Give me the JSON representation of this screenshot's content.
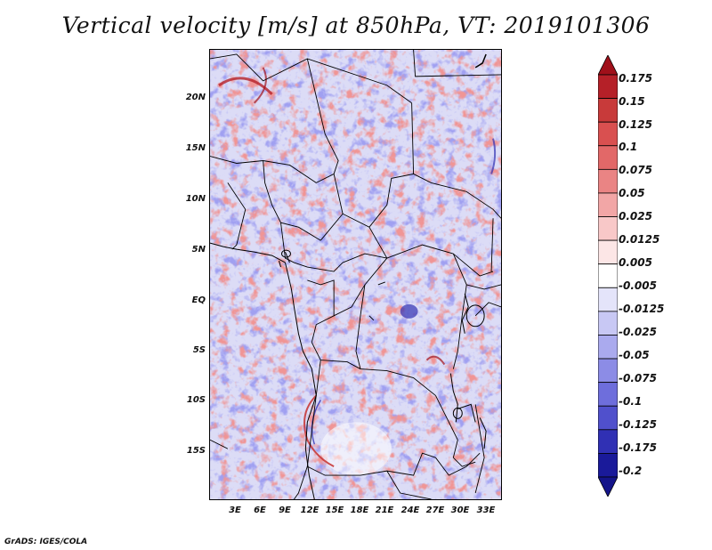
{
  "title": "Vertical velocity [m/s] at 850hPa, VT: 2019101306",
  "credit": "GrADS: IGES/COLA",
  "lat_labels": [
    "20N",
    "15N",
    "10N",
    "5N",
    "EQ",
    "5S",
    "10S",
    "15S"
  ],
  "lon_labels": [
    "3E",
    "6E",
    "9E",
    "12E",
    "15E",
    "18E",
    "21E",
    "24E",
    "27E",
    "30E",
    "33E"
  ],
  "colorbar": {
    "labels": [
      "0.175",
      "0.15",
      "0.125",
      "0.1",
      "0.075",
      "0.05",
      "0.025",
      "0.0125",
      "0.005",
      "-0.005",
      "-0.0125",
      "-0.025",
      "-0.05",
      "-0.075",
      "-0.1",
      "-0.125",
      "-0.175",
      "-0.2"
    ],
    "colors": [
      "#a0101a",
      "#b52028",
      "#c83a3a",
      "#d95050",
      "#e26868",
      "#ea8484",
      "#f2a6a6",
      "#f8c8c8",
      "#fce6e6",
      "#ffffff",
      "#e4e4fa",
      "#c8c8f4",
      "#aaaaee",
      "#8c8ce6",
      "#6e6edc",
      "#5050cc",
      "#3030b4",
      "#1a1a9a",
      "#14148a"
    ]
  }
}
